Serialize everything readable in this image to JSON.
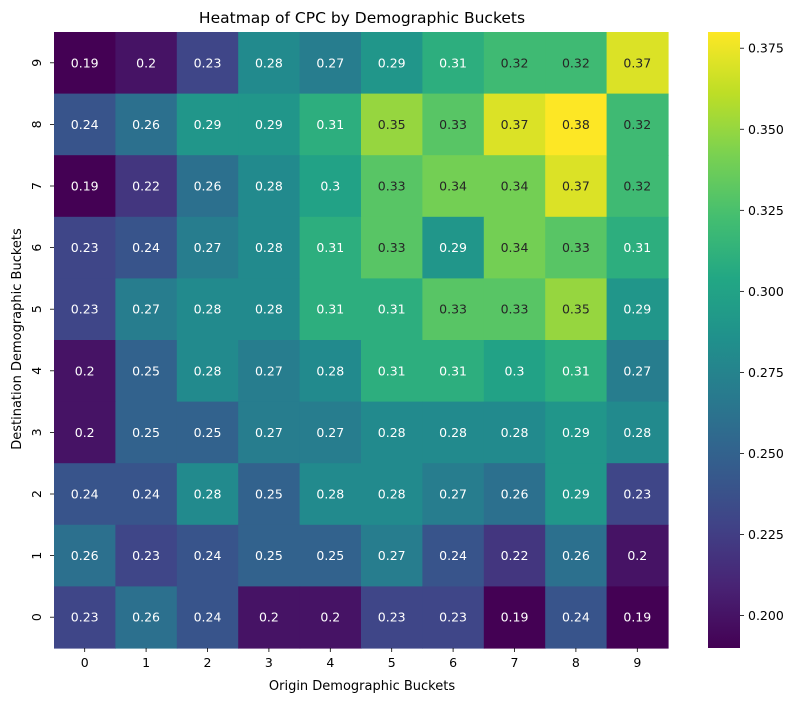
{
  "chart_data": {
    "type": "heatmap",
    "title": "Heatmap of CPC by Demographic Buckets",
    "xlabel": "Origin Demographic Buckets",
    "ylabel": "Destination Demographic Buckets",
    "x_categories": [
      "0",
      "1",
      "2",
      "3",
      "4",
      "5",
      "6",
      "7",
      "8",
      "9"
    ],
    "y_categories_top_to_bottom": [
      "9",
      "8",
      "7",
      "6",
      "5",
      "4",
      "3",
      "2",
      "1",
      "0"
    ],
    "values_top_to_bottom": [
      [
        0.19,
        0.2,
        0.23,
        0.28,
        0.27,
        0.29,
        0.31,
        0.32,
        0.32,
        0.37
      ],
      [
        0.24,
        0.26,
        0.29,
        0.29,
        0.31,
        0.35,
        0.33,
        0.37,
        0.38,
        0.32
      ],
      [
        0.19,
        0.22,
        0.26,
        0.28,
        0.3,
        0.33,
        0.34,
        0.34,
        0.37,
        0.32
      ],
      [
        0.23,
        0.24,
        0.27,
        0.28,
        0.31,
        0.33,
        0.29,
        0.34,
        0.33,
        0.31
      ],
      [
        0.23,
        0.27,
        0.28,
        0.28,
        0.31,
        0.31,
        0.33,
        0.33,
        0.35,
        0.29
      ],
      [
        0.2,
        0.25,
        0.28,
        0.27,
        0.28,
        0.31,
        0.31,
        0.3,
        0.31,
        0.27
      ],
      [
        0.2,
        0.25,
        0.25,
        0.27,
        0.27,
        0.28,
        0.28,
        0.28,
        0.29,
        0.28
      ],
      [
        0.24,
        0.24,
        0.28,
        0.25,
        0.28,
        0.28,
        0.27,
        0.26,
        0.29,
        0.23
      ],
      [
        0.26,
        0.23,
        0.24,
        0.25,
        0.25,
        0.27,
        0.24,
        0.22,
        0.26,
        0.2
      ],
      [
        0.23,
        0.26,
        0.24,
        0.2,
        0.2,
        0.23,
        0.23,
        0.19,
        0.24,
        0.19
      ]
    ],
    "colormap": "viridis",
    "color_range": [
      0.19,
      0.38
    ],
    "colorbar_ticks": [
      "0.200",
      "0.225",
      "0.250",
      "0.275",
      "0.300",
      "0.325",
      "0.350",
      "0.375"
    ],
    "colorbar_tick_values": [
      0.2,
      0.225,
      0.25,
      0.275,
      0.3,
      0.325,
      0.35,
      0.375
    ],
    "annotation_text_colors": {
      "dark": "#262626",
      "light": "#ffffff"
    }
  }
}
